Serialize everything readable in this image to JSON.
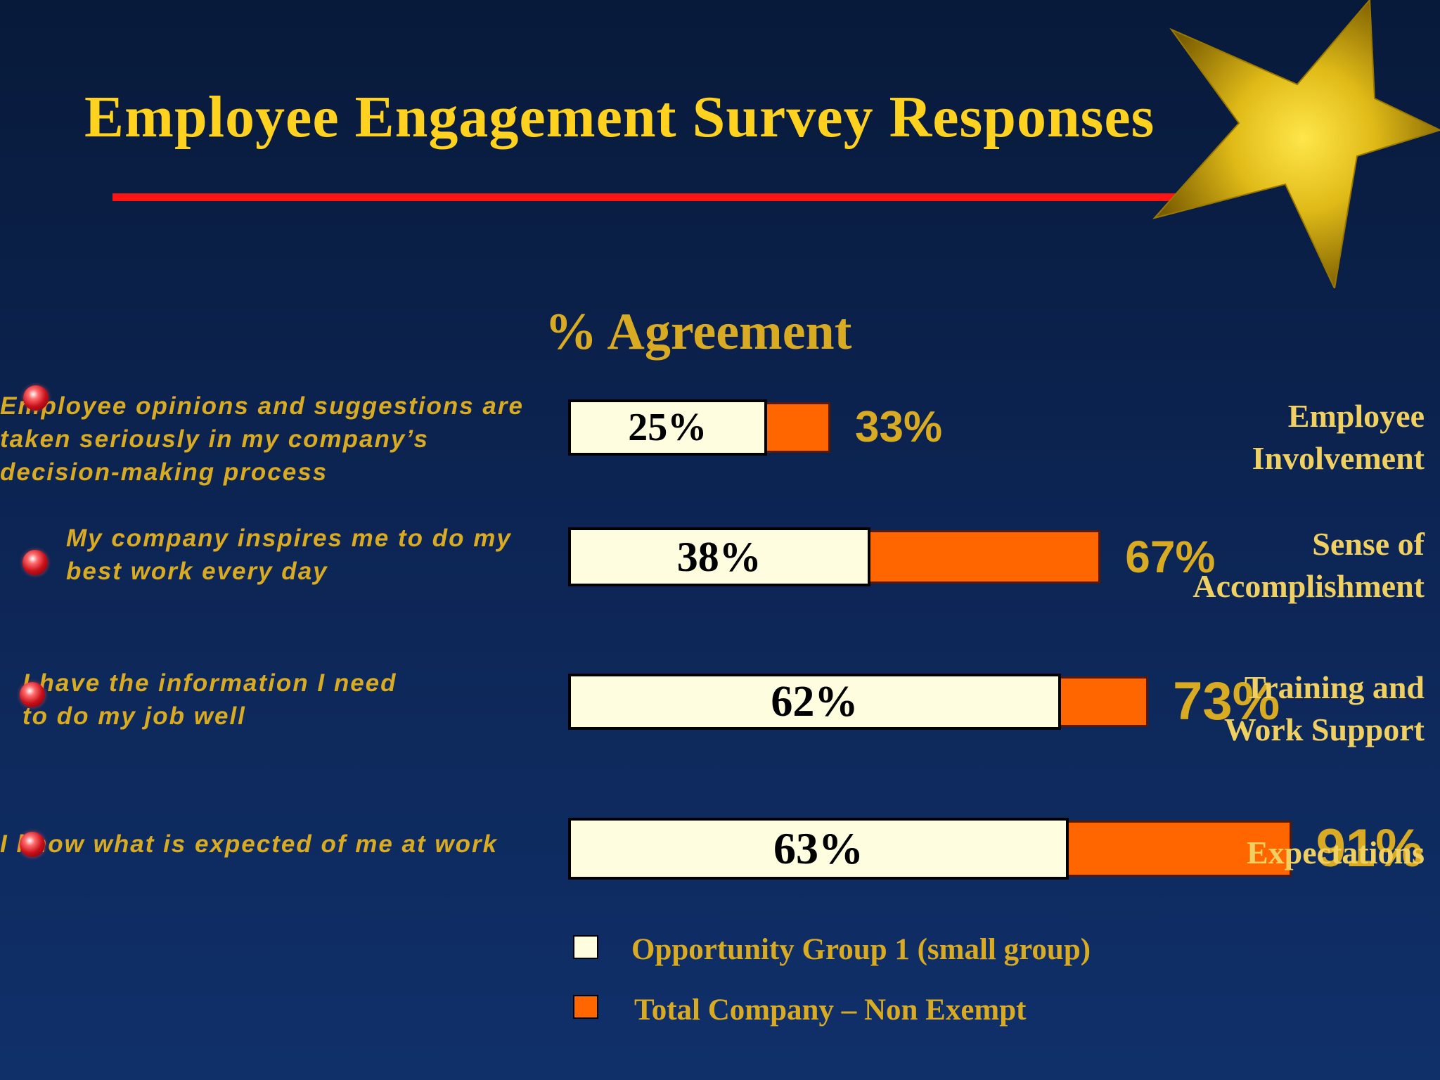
{
  "title": "Employee Engagement Survey Responses",
  "chart_data": {
    "type": "bar",
    "orientation": "horizontal",
    "subtitle": "% Agreement",
    "categories": [
      "Employee Involvement",
      "Sense of Accomplishment",
      "Training and Work Support",
      "Expectations"
    ],
    "statements": [
      "Employee opinions and suggestions are\ntaken seriously in my company’s\ndecision-making process",
      "My company inspires me to do my\nbest work every day",
      "I have the information I need\nto do my job well",
      "I know what is expected of me at work"
    ],
    "category_labels": [
      "Employee\nInvolvement",
      "Sense of\nAccomplishment",
      "Training and\nWork Support",
      "Expectations"
    ],
    "series": [
      {
        "name": "Opportunity Group 1 (small group)",
        "values": [
          25,
          38,
          62,
          63
        ],
        "labels": [
          "25%",
          "38%",
          "62%",
          "63%"
        ],
        "color": "#fffde0"
      },
      {
        "name": "Total Company – Non Exempt",
        "values": [
          33,
          67,
          73,
          91
        ],
        "labels": [
          "33%",
          "67%",
          "73%",
          "91%"
        ],
        "color": "#ff6600"
      }
    ],
    "legend": "bottom",
    "grid": false
  },
  "colors": {
    "title": "#ffd21f",
    "accent_rule": "#ff1414",
    "text_gold": "#d9ab22",
    "background": "#0c2452",
    "star": "#d4b010"
  },
  "icons": {
    "decoration": "star-icon",
    "bullet": "red-sphere-bullet-icon"
  }
}
